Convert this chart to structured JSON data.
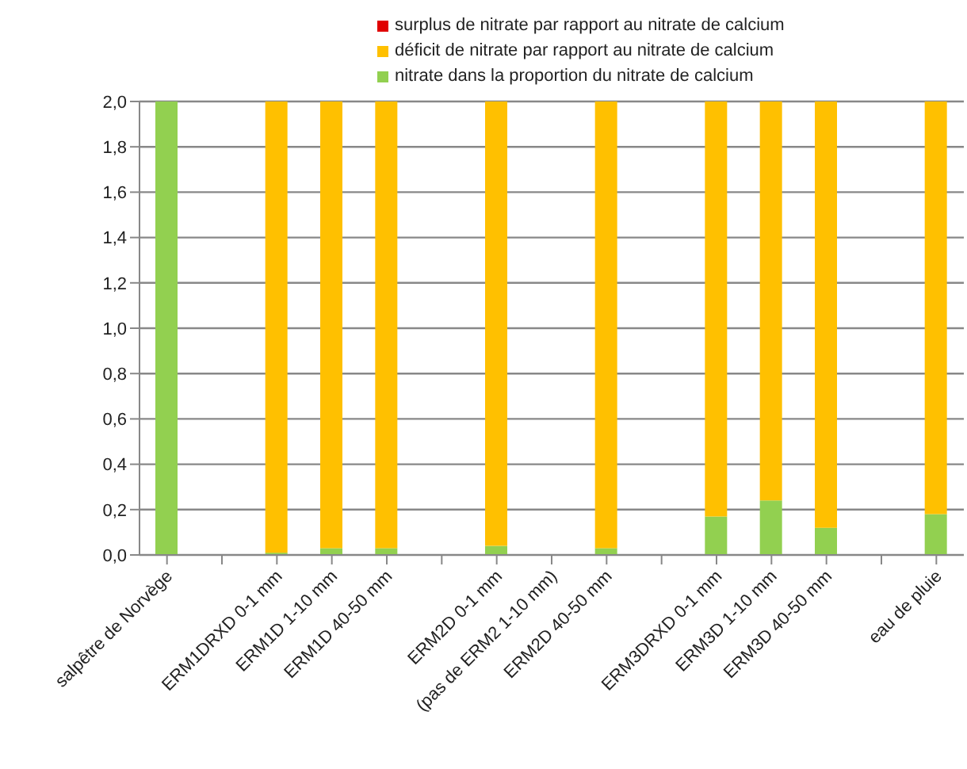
{
  "chart_data": {
    "type": "bar",
    "stacked": true,
    "categories": [
      "salpêtre de Norvège",
      null,
      "ERM1DRXD 0-1 mm",
      "ERM1D 1-10 mm",
      "ERM1D 40-50 mm",
      null,
      "ERM2D 0-1 mm",
      "(pas de ERM2 1-10 mm)",
      "ERM2D 40-50 mm",
      null,
      "ERM3DRXD 0-1 mm",
      "ERM3D 1-10 mm",
      "ERM3D 40-50 mm",
      null,
      "eau de pluie"
    ],
    "series": [
      {
        "name": "nitrate dans la proportion du nitrate de calcium",
        "color": "#92d050",
        "values": [
          2.0,
          null,
          0.01,
          0.03,
          0.03,
          null,
          0.04,
          null,
          0.03,
          null,
          0.17,
          0.24,
          0.12,
          null,
          0.18
        ]
      },
      {
        "name": "déficit de nitrate par rapport au nitrate de calcium",
        "color": "#ffc000",
        "values": [
          null,
          null,
          1.99,
          1.97,
          1.97,
          null,
          1.96,
          null,
          1.97,
          null,
          1.83,
          1.76,
          1.88,
          null,
          1.82
        ]
      },
      {
        "name": "surplus de nitrate par rapport au nitrate de calcium",
        "color": "#e00000",
        "values": [
          null,
          null,
          null,
          null,
          null,
          null,
          null,
          null,
          null,
          null,
          null,
          null,
          null,
          null,
          null
        ]
      }
    ],
    "ylim": [
      0,
      2.0
    ],
    "yticks": [
      {
        "value": 0,
        "label": "0,0"
      },
      {
        "value": 0.2,
        "label": "0,2"
      },
      {
        "value": 0.4,
        "label": "0,4"
      },
      {
        "value": 0.6,
        "label": "0,6"
      },
      {
        "value": 0.8,
        "label": "0,8"
      },
      {
        "value": 1.0,
        "label": "1,0"
      },
      {
        "value": 1.2,
        "label": "1,2"
      },
      {
        "value": 1.4,
        "label": "1,4"
      },
      {
        "value": 1.6,
        "label": "1,6"
      },
      {
        "value": 1.8,
        "label": "1,8"
      },
      {
        "value": 2.0,
        "label": "2,0"
      }
    ],
    "grid": "y",
    "legend": "top"
  }
}
